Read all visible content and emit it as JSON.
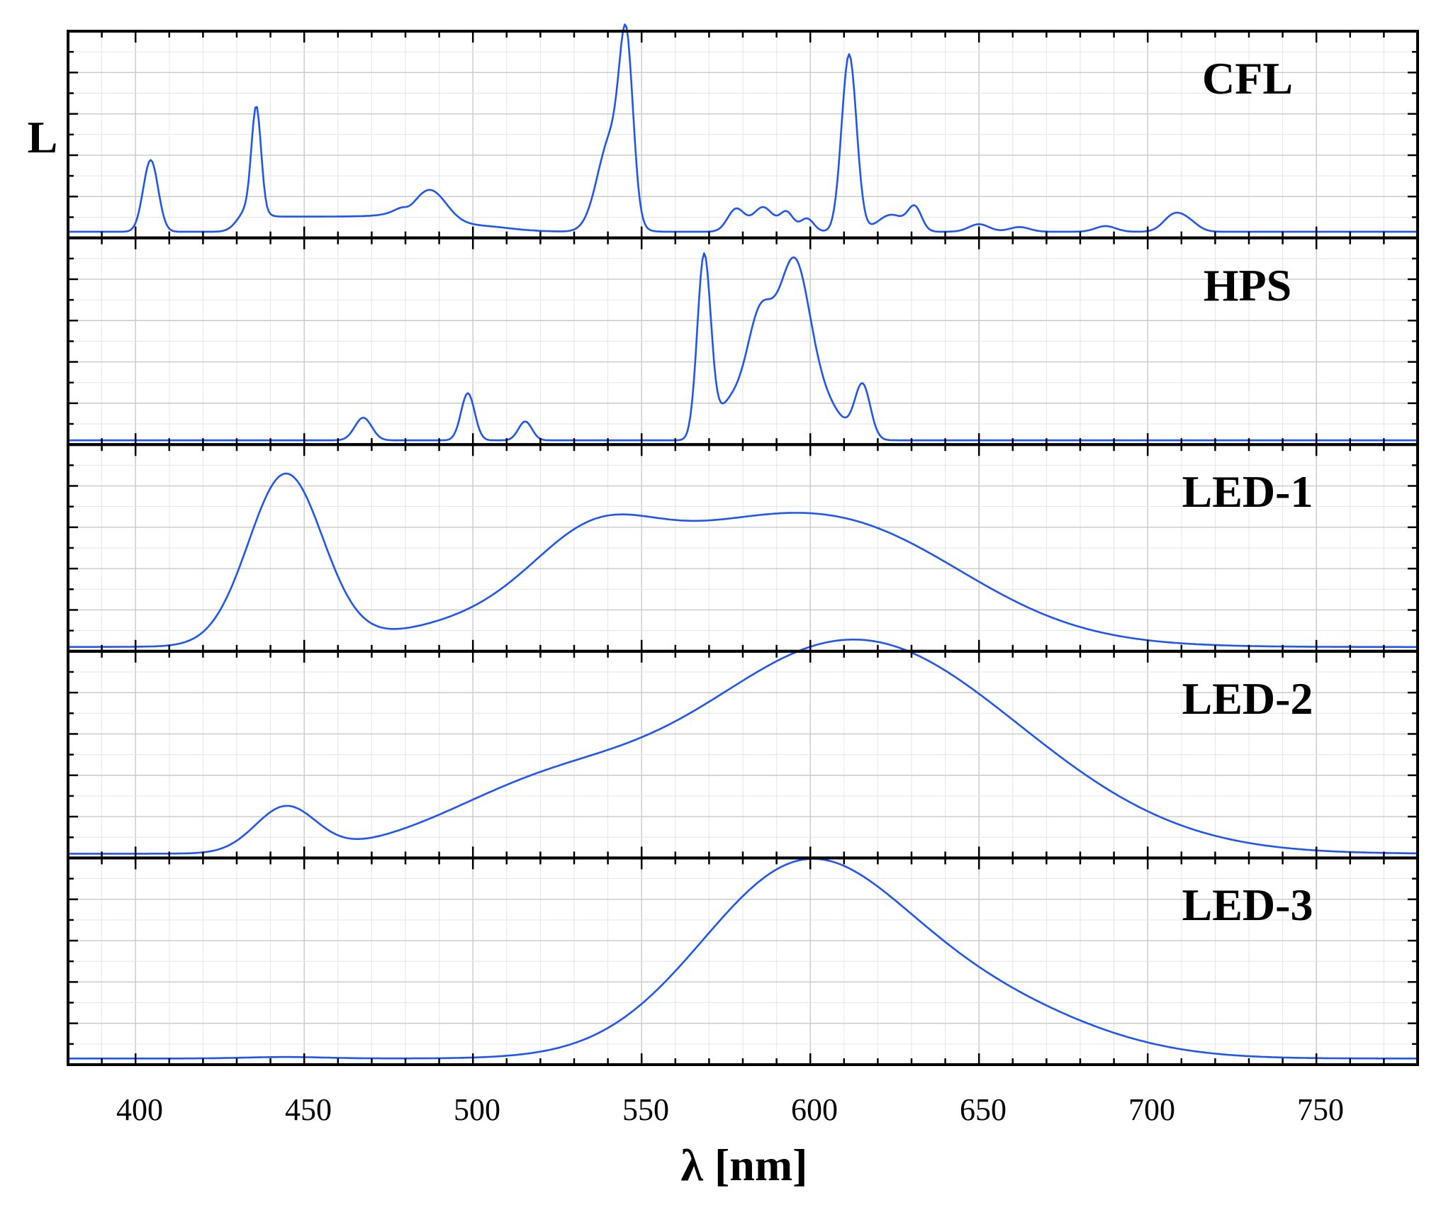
{
  "chart_data": {
    "type": "line",
    "xlabel": "λ [nm]",
    "ylabel": "L",
    "xlim": [
      380,
      780
    ],
    "xticks": [
      "400",
      "450",
      "500",
      "550",
      "600",
      "650",
      "700",
      "750"
    ],
    "grid": true,
    "line_color": "#1f55f0",
    "panels": [
      {
        "name": "CFL",
        "ylim": [
          0,
          1.05
        ],
        "baseline": 0.01,
        "peaks": [
          {
            "center": 404.5,
            "height": 0.38,
            "width": 2.2
          },
          {
            "center": 435.8,
            "height": 0.56,
            "width": 1.4
          },
          {
            "center": 433.5,
            "height": 0.12,
            "width": 3.0
          },
          {
            "center": 487.0,
            "height": 0.19,
            "width": 5.0
          },
          {
            "center": 545.5,
            "height": 0.82,
            "width": 2.0
          },
          {
            "center": 541.0,
            "height": 0.5,
            "width": 4.0
          },
          {
            "center": 578.0,
            "height": 0.12,
            "width": 2.5
          },
          {
            "center": 586.0,
            "height": 0.13,
            "width": 3.0
          },
          {
            "center": 593.0,
            "height": 0.1,
            "width": 2.0
          },
          {
            "center": 599.0,
            "height": 0.07,
            "width": 2.0
          },
          {
            "center": 611.5,
            "height": 0.94,
            "width": 2.2
          },
          {
            "center": 624.0,
            "height": 0.09,
            "width": 4.0
          },
          {
            "center": 631.0,
            "height": 0.12,
            "width": 2.0
          },
          {
            "center": 650.0,
            "height": 0.04,
            "width": 3.0
          },
          {
            "center": 662.0,
            "height": 0.025,
            "width": 3.0
          },
          {
            "center": 687.5,
            "height": 0.03,
            "width": 3.0
          },
          {
            "center": 707.5,
            "height": 0.08,
            "width": 3.0
          },
          {
            "center": 712.0,
            "height": 0.05,
            "width": 3.0
          }
        ],
        "plateaus": [
          {
            "from": 437,
            "to": 480,
            "level": 0.08,
            "edge": 1.0
          },
          {
            "from": 480,
            "to": 510,
            "level": 0.04,
            "edge": 5.0
          }
        ]
      },
      {
        "name": "HPS",
        "ylim": [
          0,
          1.05
        ],
        "baseline": 0.0,
        "peaks": [
          {
            "center": 467.5,
            "height": 0.12,
            "width": 2.5
          },
          {
            "center": 498.5,
            "height": 0.25,
            "width": 2.0
          },
          {
            "center": 515.5,
            "height": 0.1,
            "width": 2.0
          },
          {
            "center": 568.5,
            "height": 0.96,
            "width": 2.0
          },
          {
            "center": 585.0,
            "height": 0.62,
            "width": 4.0
          },
          {
            "center": 576.0,
            "height": 0.18,
            "width": 4.0
          },
          {
            "center": 595.0,
            "height": 0.86,
            "width": 4.6
          },
          {
            "center": 603.0,
            "height": 0.2,
            "width": 6.0
          },
          {
            "center": 615.5,
            "height": 0.28,
            "width": 2.3
          }
        ],
        "plateaus": []
      },
      {
        "name": "LED-1",
        "ylim": [
          0,
          1.05
        ],
        "baseline": 0.0,
        "peaks": [
          {
            "center": 444.5,
            "height": 0.9,
            "width": 11.0
          },
          {
            "center": 575.0,
            "height": 0.57,
            "width": 50.0
          },
          {
            "center": 535.0,
            "height": 0.25,
            "width": 17.0
          },
          {
            "center": 620.0,
            "height": 0.25,
            "width": 32.0
          }
        ],
        "plateaus": []
      },
      {
        "name": "LED-2",
        "ylim": [
          0,
          1.05
        ],
        "baseline": 0.0,
        "peaks": [
          {
            "center": 444.5,
            "height": 0.24,
            "width": 9.0
          },
          {
            "center": 603.0,
            "height": 0.93,
            "width": 42.0
          },
          {
            "center": 520.0,
            "height": 0.3,
            "width": 30.0
          },
          {
            "center": 650.0,
            "height": 0.35,
            "width": 40.0
          }
        ],
        "plateaus": []
      },
      {
        "name": "LED-3",
        "ylim": [
          0,
          1.05
        ],
        "baseline": 0.01,
        "peaks": [
          {
            "center": 444.5,
            "height": 0.008,
            "width": 12.0
          },
          {
            "center": 597.0,
            "height": 0.98,
            "width": 30.0
          },
          {
            "center": 650.0,
            "height": 0.28,
            "width": 32.0
          }
        ],
        "plateaus": []
      }
    ]
  }
}
